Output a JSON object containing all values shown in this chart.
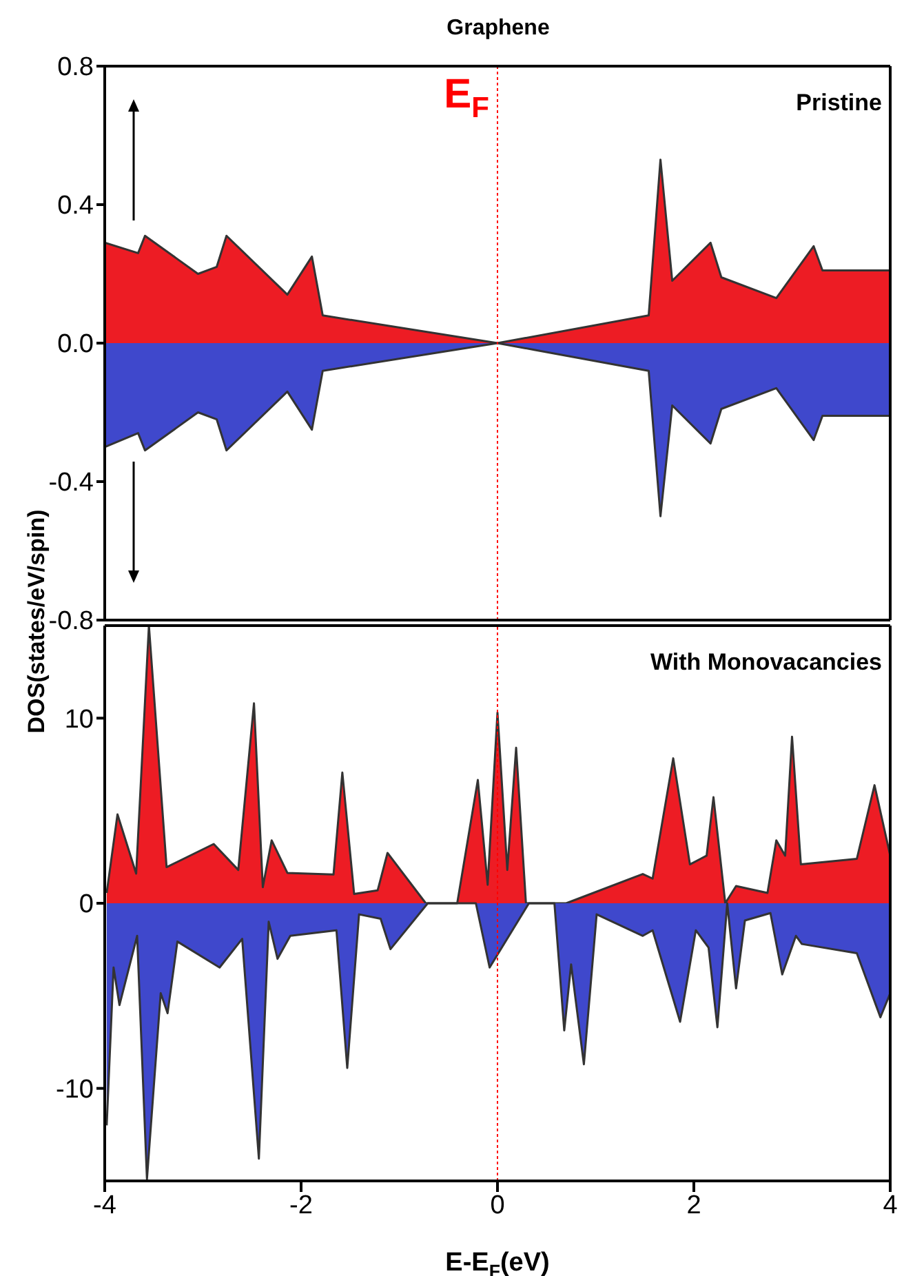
{
  "chart_data": [
    {
      "type": "area",
      "title": "Graphene",
      "ylabel": "DOS(states/eV/spin)",
      "annotations": [
        "Pristine"
      ],
      "xlim": [
        -4,
        4
      ],
      "xticks": [
        -4,
        -2,
        0,
        2,
        4
      ],
      "ylim": [
        -0.8,
        0.8
      ],
      "yticks": [
        -0.8,
        -0.4,
        {
          "value": 0,
          "label": "0.0"
        },
        0.4,
        0.8
      ],
      "tick_labels": "y",
      "ref_lines": [
        {
          "axis": "x",
          "value": 0,
          "label": "E$_{F}$",
          "color": "#ff0000",
          "line_style": "dotted"
        }
      ],
      "series": [
        {
          "color": "#ed1c24",
          "x": [
            -4,
            -3.66,
            -3.59,
            -3.05,
            -2.86,
            -2.76,
            -2.14,
            -1.89,
            -1.78,
            0,
            1.54,
            1.66,
            1.78,
            2.17,
            2.28,
            2.84,
            3.22,
            3.31,
            4
          ],
          "values": [
            0.29,
            0.26,
            0.31,
            0.2,
            0.22,
            0.31,
            0.14,
            0.25,
            0.08,
            0,
            0.08,
            0.53,
            0.18,
            0.29,
            0.19,
            0.13,
            0.28,
            0.21,
            0.21
          ]
        },
        {
          "color": "#3f48cc",
          "x": [
            -4,
            -3.66,
            -3.59,
            -3.05,
            -2.86,
            -2.76,
            -2.14,
            -1.89,
            -1.78,
            0,
            1.54,
            1.66,
            1.78,
            2.17,
            2.28,
            2.84,
            3.22,
            3.31,
            4
          ],
          "values": [
            -0.3,
            -0.26,
            -0.31,
            -0.2,
            -0.22,
            -0.31,
            -0.14,
            -0.25,
            -0.08,
            0,
            -0.08,
            -0.5,
            -0.18,
            -0.29,
            -0.19,
            -0.13,
            -0.28,
            -0.21,
            -0.21
          ]
        }
      ]
    },
    {
      "type": "area",
      "xlabel": "E-E$_{F}$(eV)",
      "annotations": [
        "With Monovacancies"
      ],
      "xlim": [
        -4,
        4
      ],
      "xticks": [
        -4,
        -2,
        0,
        2,
        4
      ],
      "ylim": [
        -15,
        15
      ],
      "yticks": [
        -10,
        0,
        10
      ],
      "ref_lines": [
        {
          "axis": "x",
          "value": 0,
          "color": "#ff0000",
          "line_style": "dotted"
        }
      ],
      "series": [
        {
          "color": "#ed1c24",
          "x": [
            -3.98,
            -3.87,
            -3.68,
            -3.55,
            -3.37,
            -2.89,
            -2.64,
            -2.48,
            -2.39,
            -2.3,
            -2.14,
            -1.67,
            -1.58,
            -1.46,
            -1.22,
            -1.12,
            -0.73,
            -0.41,
            -0.2,
            -0.1,
            0,
            0.1,
            0.19,
            0.29,
            0.7,
            1.48,
            1.58,
            1.79,
            1.96,
            2.13,
            2.2,
            2.32,
            2.43,
            2.75,
            2.84,
            2.93,
            3.0,
            3.09,
            3.66,
            3.84,
            4
          ],
          "values": [
            0.56,
            4.8,
            1.6,
            15,
            1.95,
            3.2,
            1.8,
            10.8,
            0.87,
            3.4,
            1.64,
            1.55,
            7.06,
            0.5,
            0.7,
            2.72,
            0,
            0,
            6.66,
            1.0,
            10.3,
            1.8,
            8.4,
            0,
            0,
            1.58,
            1.33,
            7.83,
            2.1,
            2.57,
            5.73,
            0,
            0.93,
            0.56,
            3.4,
            2.57,
            9.0,
            2.1,
            2.4,
            6.38,
            2.57
          ]
        },
        {
          "color": "#3f48cc",
          "x": [
            -3.98,
            -3.91,
            -3.85,
            -3.67,
            -3.57,
            -3.43,
            -3.36,
            -3.26,
            -2.83,
            -2.6,
            -2.43,
            -2.33,
            -2.24,
            -2.11,
            -1.64,
            -1.53,
            -1.41,
            -1.19,
            -1.09,
            -0.71,
            -0.22,
            -0.08,
            0.32,
            0.58,
            0.68,
            0.75,
            0.88,
            1.01,
            1.48,
            1.58,
            1.86,
            2.02,
            2.15,
            2.24,
            2.34,
            2.43,
            2.52,
            2.78,
            2.9,
            3.04,
            3.1,
            3.66,
            3.9,
            4
          ],
          "values": [
            -12.0,
            -3.47,
            -5.5,
            -1.76,
            -14.9,
            -4.86,
            -5.94,
            -2.07,
            -3.47,
            -1.92,
            -13.8,
            -1.0,
            -3.0,
            -1.76,
            -1.46,
            -8.9,
            -0.6,
            -0.84,
            -2.48,
            0,
            0,
            -3.47,
            0,
            0,
            -6.87,
            -3.3,
            -8.7,
            -0.6,
            -1.76,
            -1.46,
            -6.4,
            -1.46,
            -2.4,
            -6.7,
            0,
            -4.6,
            -0.93,
            -0.53,
            -3.84,
            -1.76,
            -2.2,
            -2.7,
            -6.16,
            -4.86
          ]
        }
      ]
    }
  ]
}
